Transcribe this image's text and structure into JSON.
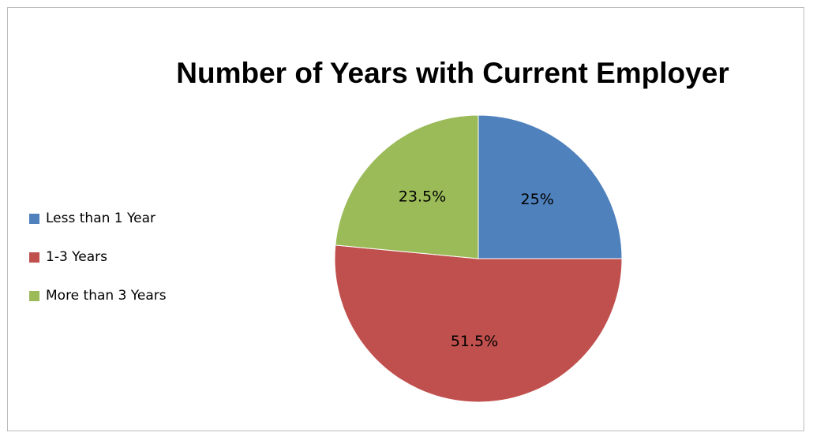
{
  "chart_data": {
    "type": "pie",
    "title": "Number of Years with Current Employer",
    "categories": [
      "Less than 1 Year",
      "1-3 Years",
      "More than 3 Years"
    ],
    "values": [
      25,
      51.5,
      23.5
    ],
    "labels": [
      "25%",
      "51.5%",
      "23.5%"
    ],
    "colors": [
      "#4f81bd",
      "#c0504d",
      "#9bbb59"
    ],
    "start_angle": "12 o'clock, clockwise",
    "legend_position": "left"
  }
}
